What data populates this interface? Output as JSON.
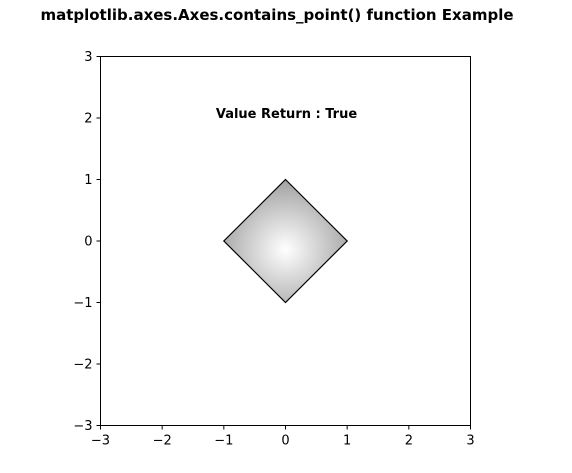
{
  "chart_data": {
    "type": "polygon",
    "title": "matplotlib.axes.Axes.contains_point() function Example",
    "xlabel": "",
    "ylabel": "",
    "xlim": [
      -3,
      3
    ],
    "ylim": [
      -3,
      3
    ],
    "x_ticks": [
      -3,
      -2,
      -1,
      0,
      1,
      2,
      3
    ],
    "y_ticks": [
      -3,
      -2,
      -1,
      0,
      1,
      2,
      3
    ],
    "x_tick_labels": [
      "−3",
      "−2",
      "−1",
      "0",
      "1",
      "2",
      "3"
    ],
    "y_tick_labels": [
      "−3",
      "−2",
      "−1",
      "0",
      "1",
      "2",
      "3"
    ],
    "grid": false,
    "shape": {
      "vertices": [
        [
          0,
          1
        ],
        [
          1,
          0
        ],
        [
          0,
          -1
        ],
        [
          -1,
          0
        ]
      ],
      "fill": "radial-gradient",
      "gradient_colors": [
        "#ffffff",
        "#999999"
      ],
      "edge_color": "#000000"
    },
    "annotation": {
      "text": "Value Return : True",
      "x": 0,
      "y": 2
    }
  }
}
